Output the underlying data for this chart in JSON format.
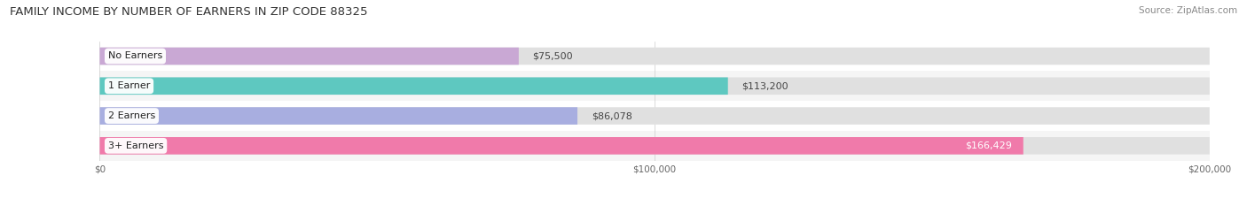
{
  "title": "FAMILY INCOME BY NUMBER OF EARNERS IN ZIP CODE 88325",
  "source": "Source: ZipAtlas.com",
  "categories": [
    "No Earners",
    "1 Earner",
    "2 Earners",
    "3+ Earners"
  ],
  "values": [
    75500,
    113200,
    86078,
    166429
  ],
  "value_labels": [
    "$75,500",
    "$113,200",
    "$86,078",
    "$166,429"
  ],
  "bar_colors": [
    "#c9a8d4",
    "#5ec8c0",
    "#a8aee0",
    "#f07aaa"
  ],
  "track_color": "#e0e0e0",
  "row_bg_colors": [
    "#ffffff",
    "#f5f5f5",
    "#ffffff",
    "#f5f5f5"
  ],
  "xlim": [
    0,
    200000
  ],
  "xticks": [
    0,
    100000,
    200000
  ],
  "xtick_labels": [
    "$0",
    "$100,000",
    "$200,000"
  ],
  "title_fontsize": 9.5,
  "source_fontsize": 7.5,
  "label_fontsize": 8,
  "value_fontsize": 8,
  "bar_height": 0.58,
  "background_color": "#ffffff",
  "value_label_inside": [
    false,
    false,
    false,
    true
  ]
}
